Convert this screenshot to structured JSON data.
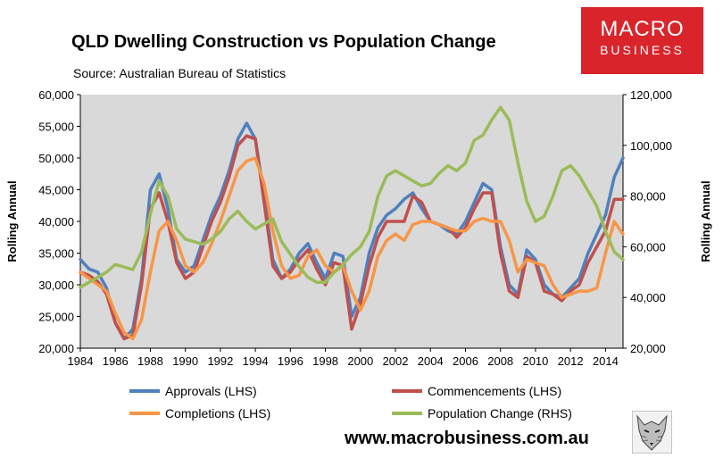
{
  "header": {
    "title": "QLD Dwelling Construction vs Population Change",
    "subtitle": "Source: Australian Bureau of Statistics"
  },
  "logo": {
    "line1": "MACRO",
    "line2": "BUSINESS",
    "color": "#d9242b"
  },
  "footer": {
    "url": "www.macrobusiness.com.au"
  },
  "icons": {
    "corner_image": "fox-icon"
  },
  "chart_data": {
    "type": "line",
    "title": "QLD Dwelling Construction vs Population Change",
    "subtitle": "Source: Australian Bureau of Statistics",
    "xlabel": "",
    "ylabel": "Rolling Annual",
    "y2label": "Rolling Annual",
    "xlim": [
      1984,
      2015
    ],
    "ylim": [
      20000,
      60000
    ],
    "y2lim": [
      20000,
      120000
    ],
    "x_ticks": [
      "1984",
      "1986",
      "1988",
      "1990",
      "1992",
      "1994",
      "1996",
      "1998",
      "2000",
      "2002",
      "2004",
      "2006",
      "2008",
      "2010",
      "2012",
      "2014"
    ],
    "y_ticks": [
      "20,000",
      "25,000",
      "30,000",
      "35,000",
      "40,000",
      "45,000",
      "50,000",
      "55,000",
      "60,000"
    ],
    "y2_ticks": [
      "20,000",
      "40,000",
      "60,000",
      "80,000",
      "100,000",
      "120,000"
    ],
    "grid": false,
    "plot_background": "#d9d9d9",
    "legend_position": "bottom",
    "series": [
      {
        "name": "Approvals (LHS)",
        "axis": "left",
        "color": "#4f81bd",
        "x": [
          1984,
          1984.5,
          1985,
          1985.5,
          1986,
          1986.5,
          1987,
          1987.5,
          1988,
          1988.5,
          1989,
          1989.5,
          1990,
          1990.5,
          1991,
          1991.5,
          1992,
          1992.5,
          1993,
          1993.5,
          1994,
          1994.5,
          1995,
          1995.5,
          1996,
          1996.5,
          1997,
          1997.5,
          1998,
          1998.5,
          1999,
          1999.5,
          2000,
          2000.5,
          2001,
          2001.5,
          2002,
          2002.5,
          2003,
          2003.5,
          2004,
          2004.5,
          2005,
          2005.5,
          2006,
          2006.5,
          2007,
          2007.5,
          2008,
          2008.5,
          2009,
          2009.5,
          2010,
          2010.5,
          2011,
          2011.5,
          2012,
          2012.5,
          2013,
          2013.5,
          2014,
          2014.5,
          2015
        ],
        "y": [
          34000,
          32500,
          32000,
          29500,
          24000,
          21500,
          23000,
          31000,
          45000,
          47500,
          42000,
          34000,
          32000,
          33000,
          37000,
          41000,
          44000,
          48000,
          53000,
          55500,
          53000,
          44000,
          34000,
          31000,
          32500,
          35000,
          36500,
          33500,
          31000,
          35000,
          34500,
          25000,
          28000,
          35000,
          39000,
          41000,
          42000,
          43500,
          44500,
          42000,
          40000,
          39500,
          38500,
          38000,
          40000,
          43000,
          46000,
          45000,
          36000,
          30000,
          28500,
          35500,
          34000,
          30000,
          28500,
          28000,
          29500,
          31000,
          35000,
          38000,
          41000,
          47000,
          50000
        ]
      },
      {
        "name": "Commencements (LHS)",
        "axis": "left",
        "color": "#c0504d",
        "x": [
          1984,
          1984.5,
          1985,
          1985.5,
          1986,
          1986.5,
          1987,
          1987.5,
          1988,
          1988.5,
          1989,
          1989.5,
          1990,
          1990.5,
          1991,
          1991.5,
          1992,
          1992.5,
          1993,
          1993.5,
          1994,
          1994.5,
          1995,
          1995.5,
          1996,
          1996.5,
          1997,
          1997.5,
          1998,
          1998.5,
          1999,
          1999.5,
          2000,
          2000.5,
          2001,
          2001.5,
          2002,
          2002.5,
          2003,
          2003.5,
          2004,
          2004.5,
          2005,
          2005.5,
          2006,
          2006.5,
          2007,
          2007.5,
          2008,
          2008.5,
          2009,
          2009.5,
          2010,
          2010.5,
          2011,
          2011.5,
          2012,
          2012.5,
          2013,
          2013.5,
          2014,
          2014.5,
          2015
        ],
        "y": [
          32000,
          31500,
          30500,
          28500,
          24000,
          21500,
          22000,
          30000,
          42000,
          44500,
          40000,
          33500,
          31000,
          32000,
          36000,
          40000,
          43000,
          47000,
          52000,
          53500,
          53000,
          43000,
          33000,
          31000,
          32000,
          34000,
          35500,
          32500,
          30000,
          33500,
          33000,
          23000,
          27000,
          33000,
          37500,
          40000,
          40000,
          40000,
          44000,
          43000,
          40000,
          39500,
          39000,
          37500,
          39000,
          42000,
          44500,
          44500,
          35000,
          29000,
          28000,
          34500,
          33500,
          29000,
          28500,
          27500,
          29000,
          30000,
          33500,
          36000,
          38500,
          43500,
          43500
        ]
      },
      {
        "name": "Completions (LHS)",
        "axis": "left",
        "color": "#f79646",
        "x": [
          1984,
          1984.5,
          1985,
          1985.5,
          1986,
          1986.5,
          1987,
          1987.5,
          1988,
          1988.5,
          1989,
          1989.5,
          1990,
          1990.5,
          1991,
          1991.5,
          1992,
          1992.5,
          1993,
          1993.5,
          1994,
          1994.5,
          1995,
          1995.5,
          1996,
          1996.5,
          1997,
          1997.5,
          1998,
          1998.5,
          1999,
          1999.5,
          2000,
          2000.5,
          2001,
          2001.5,
          2002,
          2002.5,
          2003,
          2003.5,
          2004,
          2004.5,
          2005,
          2005.5,
          2006,
          2006.5,
          2007,
          2007.5,
          2008,
          2008.5,
          2009,
          2009.5,
          2010,
          2010.5,
          2011,
          2011.5,
          2012,
          2012.5,
          2013,
          2013.5,
          2014,
          2014.5,
          2015
        ],
        "y": [
          32000,
          31000,
          30000,
          29000,
          25500,
          22500,
          21500,
          24500,
          32000,
          38500,
          40000,
          37000,
          33000,
          32000,
          33500,
          36500,
          40000,
          44000,
          48000,
          49500,
          50000,
          46000,
          38500,
          33000,
          31000,
          31500,
          34500,
          35500,
          33000,
          32000,
          33000,
          29000,
          26000,
          29000,
          34500,
          37000,
          38000,
          37000,
          39500,
          40000,
          40000,
          39500,
          39000,
          38500,
          38500,
          40000,
          40500,
          40000,
          40000,
          37000,
          32000,
          34000,
          33500,
          33000,
          30000,
          28000,
          28500,
          29000,
          29000,
          29500,
          35000,
          40000,
          38000
        ]
      },
      {
        "name": "Population Change (RHS)",
        "axis": "right",
        "color": "#9bbb59",
        "x": [
          1984,
          1984.5,
          1985,
          1985.5,
          1986,
          1986.5,
          1987,
          1987.5,
          1988,
          1988.5,
          1989,
          1989.5,
          1990,
          1990.5,
          1991,
          1991.5,
          1992,
          1992.5,
          1993,
          1993.5,
          1994,
          1994.5,
          1995,
          1995.5,
          1996,
          1996.5,
          1997,
          1997.5,
          1998,
          1998.5,
          1999,
          1999.5,
          2000,
          2000.5,
          2001,
          2001.5,
          2002,
          2002.5,
          2003,
          2003.5,
          2004,
          2004.5,
          2005,
          2005.5,
          2006,
          2006.5,
          2007,
          2007.5,
          2008,
          2008.5,
          2009,
          2009.5,
          2010,
          2010.5,
          2011,
          2011.5,
          2012,
          2012.5,
          2013,
          2013.5,
          2014,
          2014.5,
          2015
        ],
        "y": [
          44000,
          46000,
          48000,
          50000,
          53000,
          52000,
          51000,
          58000,
          73000,
          86000,
          80000,
          67000,
          63000,
          62000,
          61000,
          63000,
          66000,
          71000,
          74000,
          70000,
          67000,
          69000,
          71000,
          62000,
          57000,
          52000,
          48000,
          46000,
          46000,
          50000,
          53000,
          57000,
          60000,
          66000,
          80000,
          88000,
          90000,
          88000,
          86000,
          84000,
          85000,
          89000,
          92000,
          90000,
          93000,
          102000,
          104000,
          110000,
          115000,
          110000,
          93000,
          78000,
          70000,
          72000,
          80000,
          90000,
          92000,
          88000,
          82000,
          76000,
          66000,
          58000,
          55000
        ]
      }
    ]
  }
}
